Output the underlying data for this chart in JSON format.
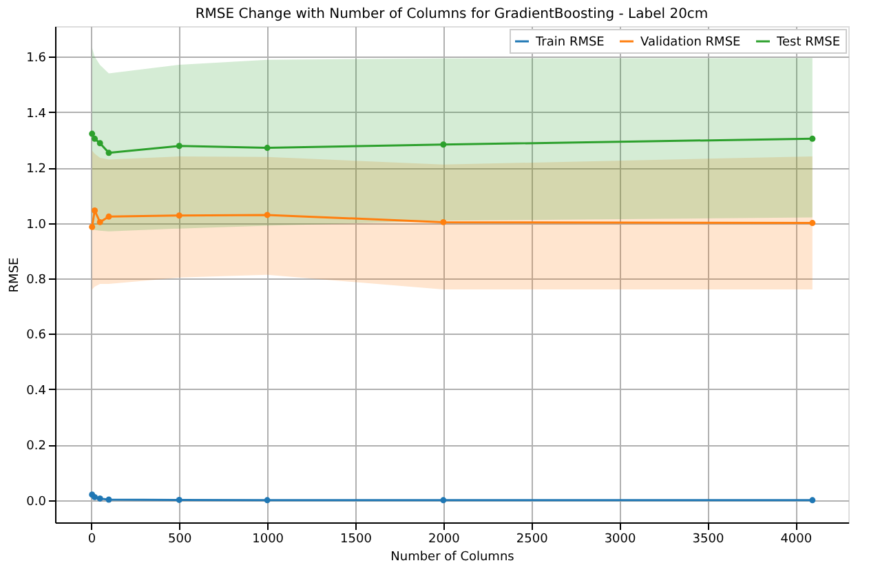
{
  "chart_data": {
    "type": "line",
    "title": "RMSE Change with Number of Columns for GradientBoosting - Label 20cm",
    "xlabel": "Number of Columns",
    "ylabel": "RMSE",
    "x": [
      5,
      20,
      50,
      100,
      500,
      1000,
      2000,
      4096
    ],
    "series": [
      {
        "name": "Train RMSE",
        "color": "#1f77b4",
        "values": [
          0.02,
          0.011,
          0.006,
          0.002,
          0.001,
          0,
          0,
          0
        ]
      },
      {
        "name": "Validation RMSE",
        "color": "#ff7f0e",
        "values": [
          0.986,
          1.045,
          1.003,
          1.023,
          1.027,
          1.029,
          1.003,
          1.0
        ],
        "lower": [
          0.76,
          0.77,
          0.78,
          0.78,
          0.803,
          0.813,
          0.76,
          0.76
        ],
        "upper": [
          1.261,
          1.25,
          1.235,
          1.229,
          1.24,
          1.238,
          1.211,
          1.24
        ]
      },
      {
        "name": "Test RMSE",
        "color": "#2ca02c",
        "values": [
          1.322,
          1.304,
          1.288,
          1.253,
          1.278,
          1.271,
          1.283,
          1.304
        ],
        "lower": [
          0.976,
          0.975,
          0.972,
          0.97,
          0.98,
          0.99,
          1.008,
          1.02
        ],
        "upper": [
          1.632,
          1.6,
          1.57,
          1.54,
          1.571,
          1.589,
          1.594,
          1.595
        ]
      }
    ],
    "xlim": [
      -205,
      4300
    ],
    "xticks": [
      0,
      500,
      1000,
      1500,
      2000,
      2500,
      3000,
      3500,
      4000
    ],
    "ylim": [
      -0.08,
      1.71
    ],
    "yticks": [
      {
        "value": 0,
        "label": "0.0"
      },
      {
        "value": 0.2,
        "label": "0.2"
      },
      {
        "value": 0.4,
        "label": "0.4"
      },
      {
        "value": 0.6,
        "label": "0.6"
      },
      {
        "value": 0.8,
        "label": "0.8"
      },
      {
        "value": 1.0,
        "label": "1.0"
      },
      {
        "value": 1.2,
        "label": "1.2"
      },
      {
        "value": 1.4,
        "label": "1.4"
      },
      {
        "value": 1.6,
        "label": "1.6"
      }
    ],
    "grid": true,
    "legend": "top right",
    "marker": "circle",
    "line_style": "solid"
  }
}
